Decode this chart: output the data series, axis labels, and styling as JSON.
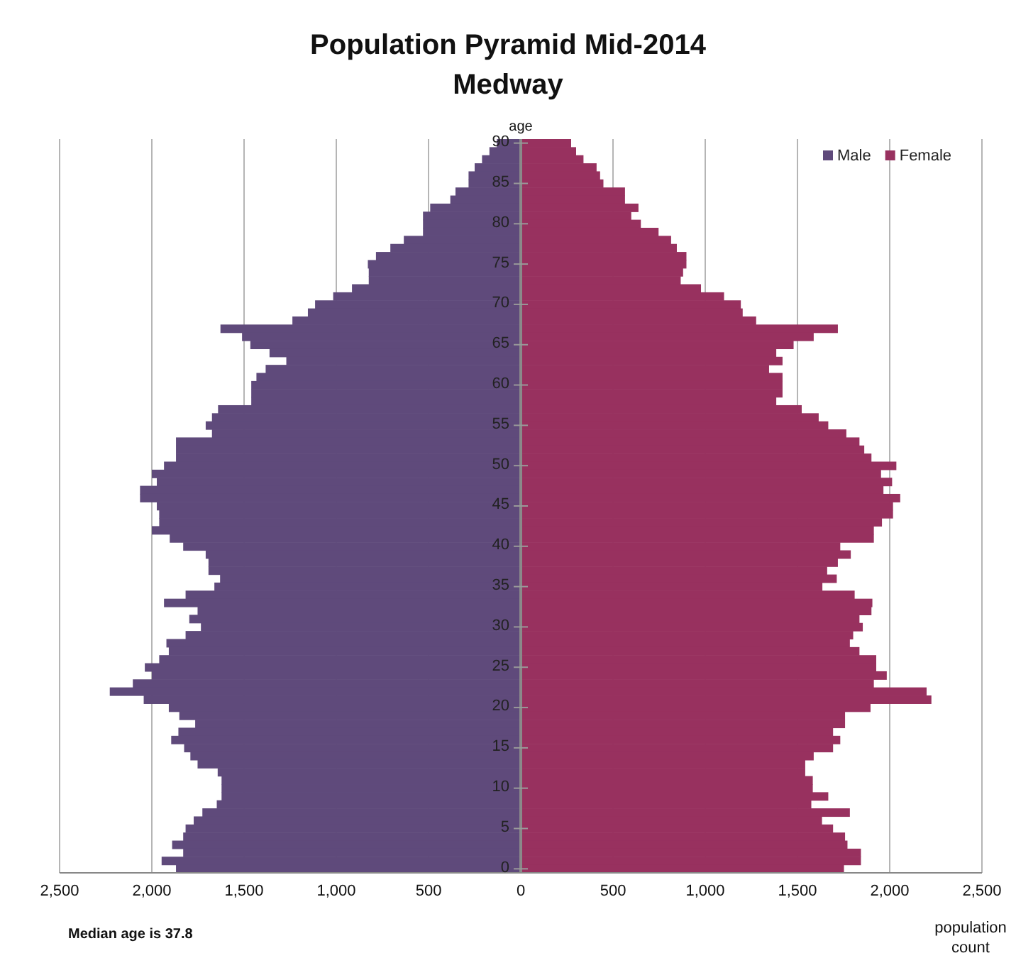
{
  "chart_data": {
    "type": "bar",
    "orientation": "horizontal",
    "title": "Population Pyramid Mid-2014",
    "subtitle": "Medway",
    "ylabel": "age",
    "xlabel": "population count",
    "annotations": [
      "Median age is 37.8"
    ],
    "categories": [
      "90",
      null,
      null,
      null,
      null,
      "85",
      null,
      null,
      null,
      null,
      "80",
      null,
      null,
      null,
      null,
      "75",
      null,
      null,
      null,
      null,
      "70",
      null,
      null,
      null,
      null,
      "65",
      null,
      null,
      null,
      null,
      "60",
      null,
      null,
      null,
      null,
      "55",
      null,
      null,
      null,
      null,
      "50",
      null,
      null,
      null,
      null,
      "45",
      null,
      null,
      null,
      null,
      "40",
      null,
      null,
      null,
      null,
      "35",
      null,
      null,
      null,
      null,
      "30",
      null,
      null,
      null,
      null,
      "25",
      null,
      null,
      null,
      null,
      "20",
      null,
      null,
      null,
      null,
      "15",
      null,
      null,
      null,
      null,
      "10",
      null,
      null,
      null,
      null,
      "5",
      null,
      null,
      null,
      null,
      "0"
    ],
    "series": [
      {
        "name": "Male",
        "color": "#5f4a7b",
        "values": [
          -130,
          -170,
          -210,
          -250,
          -283,
          -283,
          -354,
          -382,
          -491,
          -530,
          -530,
          -530,
          -634,
          -707,
          -785,
          -829,
          -824,
          -824,
          -915,
          -1017,
          -1115,
          -1154,
          -1238,
          -1628,
          -1511,
          -1466,
          -1362,
          -1271,
          -1383,
          -1433,
          -1461,
          -1461,
          -1461,
          -1641,
          -1674,
          -1708,
          -1674,
          -1869,
          -1869,
          -1869,
          -1934,
          -2000,
          -1973,
          -2064,
          -2064,
          -1973,
          -1960,
          -1960,
          -2000,
          -1903,
          -1830,
          -1708,
          -1693,
          -1693,
          -1630,
          -1661,
          -1817,
          -1934,
          -1752,
          -1797,
          -1734,
          -1817,
          -1921,
          -1908,
          -1960,
          -2038,
          -2000,
          -2103,
          -2228,
          -2044,
          -1908,
          -1851,
          -1765,
          -1856,
          -1895,
          -1825,
          -1791,
          -1752,
          -1643,
          -1622,
          -1622,
          -1622,
          -1648,
          -1726,
          -1773,
          -1817,
          -1830,
          -1890,
          -1830,
          -1947,
          -1869
        ]
      },
      {
        "name": "Female",
        "color": "#98315f",
        "values": [
          273,
          300,
          340,
          411,
          430,
          448,
          565,
          565,
          638,
          599,
          651,
          747,
          815,
          846,
          898,
          898,
          880,
          867,
          977,
          1102,
          1193,
          1203,
          1276,
          1719,
          1588,
          1479,
          1385,
          1419,
          1346,
          1419,
          1419,
          1419,
          1385,
          1523,
          1615,
          1667,
          1765,
          1836,
          1862,
          1901,
          2036,
          1953,
          2013,
          1966,
          2057,
          2018,
          2018,
          1958,
          1914,
          1914,
          1732,
          1789,
          1719,
          1661,
          1713,
          1635,
          1810,
          1906,
          1901,
          1836,
          1854,
          1802,
          1784,
          1836,
          1927,
          1927,
          1984,
          1914,
          2200,
          2226,
          1896,
          1758,
          1758,
          1693,
          1732,
          1693,
          1588,
          1542,
          1542,
          1583,
          1583,
          1667,
          1575,
          1784,
          1633,
          1693,
          1758,
          1771,
          1844,
          1844,
          1752
        ]
      }
    ],
    "xlim": [
      -2500,
      2500
    ],
    "xticks": [
      {
        "value": -2500,
        "label": "2,500"
      },
      {
        "value": -2000,
        "label": "2,000"
      },
      {
        "value": -1500,
        "label": "1,500"
      },
      {
        "value": -1000,
        "label": "1,000"
      },
      {
        "value": -500,
        "label": "500"
      },
      0,
      500,
      {
        "value": 1000,
        "label": "1,000"
      },
      {
        "value": 1500,
        "label": "1,500"
      },
      {
        "value": 2000,
        "label": "2,000"
      },
      {
        "value": 2500,
        "label": "2,500"
      }
    ],
    "grid": "x",
    "legend": "top right",
    "stacked": true
  }
}
